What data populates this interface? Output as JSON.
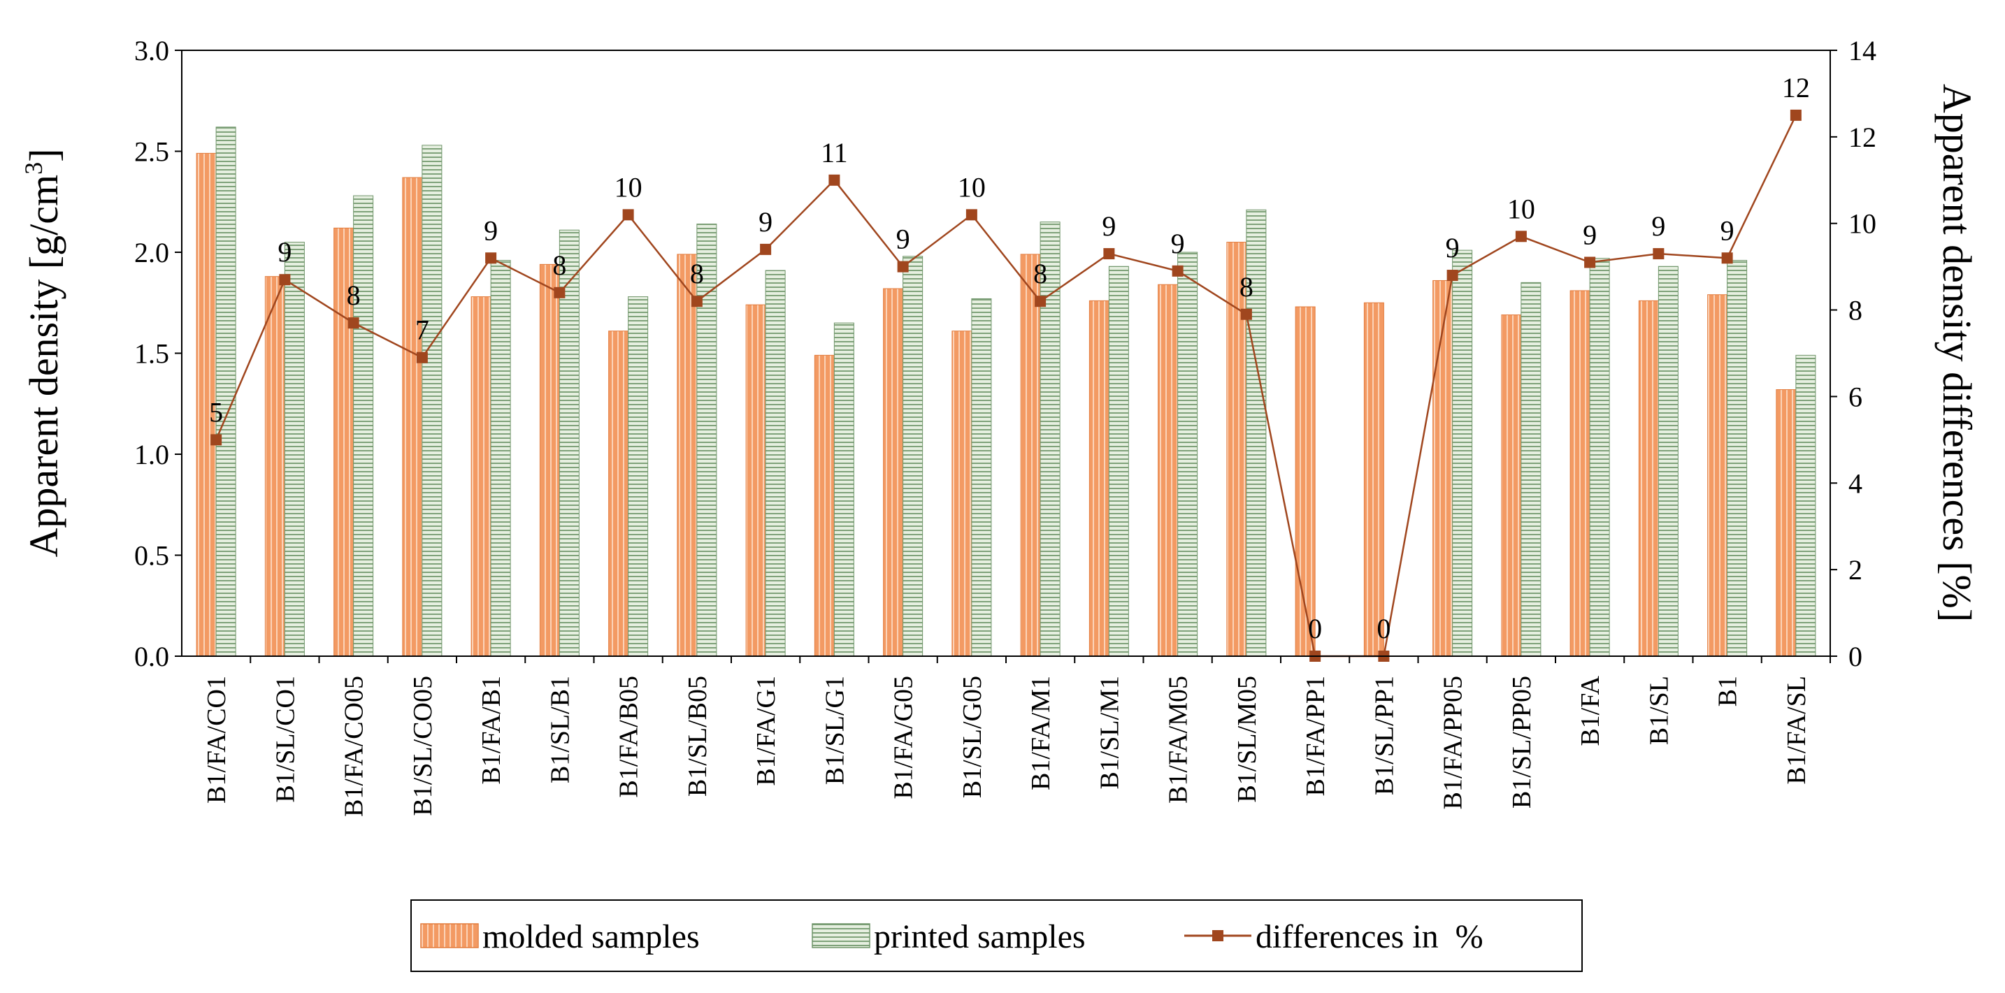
{
  "chart_data": {
    "type": "bar",
    "title": "",
    "xlabel": "",
    "ylabel": "Apparent density [g/cm",
    "ylabel_sup": "3",
    "ylabel_end": "]",
    "y2label": "Apparent density differences [%]",
    "ylim": [
      0,
      3.0
    ],
    "y2lim": [
      0,
      14
    ],
    "yticks": [
      "0.0",
      "0.5",
      "1.0",
      "1.5",
      "2.0",
      "2.5",
      "3.0"
    ],
    "y2ticks": [
      "0",
      "2",
      "4",
      "6",
      "8",
      "10",
      "12",
      "14"
    ],
    "grid": false,
    "legend_position": "bottom",
    "categories": [
      "B1/FA/CO1",
      "B1/SL/CO1",
      "B1/FA/CO05",
      "B1/SL/CO05",
      "B1/FA/B1",
      "B1/SL/B1",
      "B1/FA/B05",
      "B1/SL/B05",
      "B1/FA/G1",
      "B1/SL/G1",
      "B1/FA/G05",
      "B1/SL/G05",
      "B1/FA/M1",
      "B1/SL/M1",
      "B1/FA/M05",
      "B1/SL/M05",
      "B1/FA/PP1",
      "B1/SL/PP1",
      "B1/FA/PP05",
      "B1/SL/PP05",
      "B1/FA",
      "B1/SL",
      "B1",
      "B1/FA/SL"
    ],
    "series": [
      {
        "name": "molded samples",
        "kind": "bar",
        "axis": "left",
        "color": "#f5a470",
        "values": [
          2.49,
          1.88,
          2.12,
          2.37,
          1.78,
          1.94,
          1.61,
          1.99,
          1.74,
          1.49,
          1.82,
          1.61,
          1.99,
          1.76,
          1.84,
          2.05,
          1.73,
          1.75,
          1.86,
          1.69,
          1.81,
          1.76,
          1.79,
          1.32
        ]
      },
      {
        "name": "printed samples",
        "kind": "bar",
        "axis": "left",
        "color": "#c8dcc0",
        "values": [
          2.62,
          2.05,
          2.28,
          2.53,
          1.96,
          2.11,
          1.78,
          2.14,
          1.91,
          1.65,
          1.98,
          1.77,
          2.15,
          1.93,
          2.0,
          2.21,
          null,
          null,
          2.01,
          1.85,
          1.97,
          1.93,
          1.96,
          1.49
        ]
      },
      {
        "name": "differences in  %",
        "kind": "line",
        "axis": "right",
        "color": "#a0461e",
        "values": [
          5.0,
          8.7,
          7.7,
          6.9,
          9.2,
          8.4,
          10.2,
          8.2,
          9.4,
          11.0,
          9.0,
          10.2,
          8.2,
          9.3,
          8.9,
          7.9,
          0,
          0,
          8.8,
          9.7,
          9.1,
          9.3,
          9.2,
          12.5
        ],
        "labels": [
          "5",
          "9",
          "8",
          "7",
          "9",
          "8",
          "10",
          "8",
          "9",
          "11",
          "9",
          "10",
          "8",
          "9",
          "9",
          "8",
          "0",
          "0",
          "9",
          "10",
          "9",
          "9",
          "9",
          "12"
        ]
      }
    ]
  }
}
